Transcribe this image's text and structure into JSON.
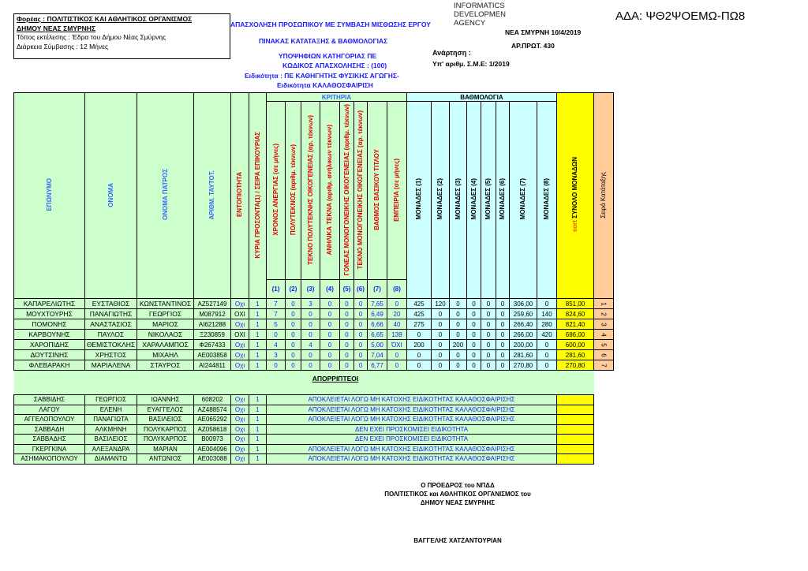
{
  "header": {
    "agency_line": "Φορέας :  ΠΟΛΙΤΙΣΤΙΚΟΣ ΚΑΙ ΑΘΛΗΤΙΚΟΣ ΟΡΓΑΝΙΣΜΟΣ",
    "agency_line2": "ΔΗΜΟΥ ΝΕΑΣ ΣΜΥΡΝΗΣ",
    "place": "Τόπος εκτέλεσης : Έδρα του Δήμου Νέας Σμύρνης",
    "duration": "Διάρκεια Σύμβασης :  12 Μήνες",
    "title1": "ΑΠΑΣΧΟΛΗΣΗ ΠΡΟΣΩΠΙΚΟΥ ΜΕ ΣΥΜΒΑΣΗ ΜΙΣΘΩΣΗΣ ΕΡΓΟΥ",
    "title2": "ΠΙΝΑΚΑΣ ΚΑΤΑΤΑΞΗΣ & ΒΑΘΜΟΛΟΓΙΑΣ",
    "title3": "ΥΠΟΨΗΦΙΩΝ ΚΑΤΗΓΟΡΙΑΣ ΠΕ",
    "title4": "ΚΩΔΙΚΟΣ ΑΠΑΣΧΟΛΗΣΗΣ : (100)",
    "specialty1": "Ειδικότητα :  ΠΕ ΚΑΘΗΓΗΤΗΣ ΦΥΣΙΚΗΣ ΑΓΩΓΗΣ-",
    "specialty2": "Ειδικότητα ΚΑΛΑΘΟΣΦΑΙΡΙΣΗ",
    "signature_stamp": "INFORMATICS DEVELOPMEN AGENCY",
    "place_date": "ΝΕΑ ΣΜΥΡΝΗ    10/4/2019",
    "protocol": "ΑΡ.ΠΡΩΤ. 430",
    "posting": "Ανάρτηση :",
    "sme": "Υπ' αριθμ. Σ.Μ.Ε:  1/2019",
    "ada": "ΑΔΑ: ΨΘ2ΨΟΕΜΩ-ΠΩ8"
  },
  "columns": {
    "surname": "ΕΠΩΝΥΜΟ",
    "name": "ΟΝΟΜΑ",
    "father": "ΟΝΟΜΑ ΠΑΤΡΟΣ",
    "id": "ΑΡΙΘΜ. ΤΑΥΤΟΤ.",
    "locality": "ΕΝΤΟΠΙΟΤΗΤΑ",
    "qual": "ΚΥΡΙΑ ΠΡΟΣΟΝΤΑ(1) / ΣΕΙΡΑ ΕΠΙΚΟΥΡΙΑΣ",
    "criteria_group": "ΚΡΙΤΗΡΙΑ",
    "criteria": [
      "ΧΡΟΝΟΣ ΑΝΕΡΓΙΑΣ (σε μήνες)",
      "ΠΟΛΥΤΕΚΝΟΣ (αριθμ. τέκνων)",
      "ΤΕΚΝΟ ΠΟΛΥΤΕΚΝΗΣ ΟΙΚΟΓΕΝΕΙΑΣ (αρ. τέκνων)",
      "ΑΝΗΛΙΚΑ ΤΕΚΝΑ (αριθμ. ανήλικων τέκνων)",
      "ΓΟΝΕΑΣ ΜΟΝΟΓΟΝΕΙΚΗΣ ΟΙΚΟΓΕΝΕΙΑΣ (αριθμ. τέκνων)",
      "ΤΕΚΝΟ ΜΟΝΟΓΟΝΕΙΚΗΣ ΟΙΚΟΓΕΝΕΙΑΣ (αρ. τέκνων)",
      "ΒΑΘΜΟΣ ΒΑΣΙΚΟΥ ΤΙΤΛΟΥ",
      "ΕΜΠΕΙΡΙΑ (σε μήνες)"
    ],
    "criteria_nums": [
      "(1)",
      "(2)",
      "(3)",
      "(4)",
      "(5)",
      "(6)",
      "(7)",
      "(8)"
    ],
    "score_group": "ΒΑΘΜΟΛΟΓΙΑ",
    "scores": [
      "ΜΟΝΑΔΕΣ (1)",
      "ΜΟΝΑΔΕΣ (2)",
      "ΜΟΝΑΔΕΣ (3)",
      "ΜΟΝΑΔΕΣ (4)",
      "ΜΟΝΑΔΕΣ (5)",
      "ΜΟΝΑΔΕΣ (6)",
      "ΜΟΝΑΔΕΣ (7)",
      "ΜΟΝΑΔΕΣ (8)"
    ],
    "total_sort": "sort",
    "total": "ΣΥΝΟΛΟ ΜΟΝΑΔΩΝ",
    "rank": "Σειρά Κατάταξης"
  },
  "rows": [
    [
      "ΚΑΠΑΡΕΛΙΩΤΗΣ",
      "ΕΥΣΤΑΘΙΟΣ",
      "ΚΩΝΣΤΑΝΤΙΝΟΣ",
      "ΑΖ527149",
      "Οχι",
      "1",
      "7",
      "0",
      "3",
      "0",
      "0",
      "0",
      "7,65",
      "0",
      "425",
      "120",
      "0",
      "0",
      "0",
      "0",
      "306,00",
      "0",
      "851,00",
      "1"
    ],
    [
      "ΜΟΥΧΤΟΥΡΗΣ",
      "ΠΑΝΑΓΙΩΤΗΣ",
      "ΓΕΩΡΓΙΟΣ",
      "Μ087912",
      "ΟΧΙ",
      "1",
      "7",
      "0",
      "0",
      "0",
      "0",
      "0",
      "6,49",
      "20",
      "425",
      "0",
      "0",
      "0",
      "0",
      "0",
      "259,60",
      "140",
      "824,60",
      "2"
    ],
    [
      "ΠΟΜΟΝΗΣ",
      "ΑΝΑΣΤΑΣΙΟΣ",
      "ΜΑΡΙΟΣ",
      "ΑΙ621288",
      "Οχι",
      "1",
      "5",
      "0",
      "0",
      "0",
      "0",
      "0",
      "6,66",
      "40",
      "275",
      "0",
      "0",
      "0",
      "0",
      "0",
      "266,40",
      "280",
      "821,40",
      "3"
    ],
    [
      "ΚΑΡΒΟΥΝΗΣ",
      "ΠΑΥΛΟΣ",
      "ΝΙΚΟΛΑΟΣ",
      "Ξ230859",
      "ΟΧΙ",
      "1",
      "0",
      "0",
      "0",
      "0",
      "0",
      "0",
      "6,65",
      "139",
      "0",
      "0",
      "0",
      "0",
      "0",
      "0",
      "266,00",
      "420",
      "686,00",
      "4"
    ],
    [
      "ΧΑΡΟΠΙΔΗΣ",
      "ΘΕΜΙΣΤΟΚΛΗΣ",
      "ΧΑΡΑΛΑΜΠΟΣ",
      "Φ267433",
      "Οχι",
      "1",
      "4",
      "0",
      "4",
      "0",
      "0",
      "0",
      "5,00",
      "ΌΧΙ",
      "200",
      "0",
      "200",
      "0",
      "0",
      "0",
      "200,00",
      "0",
      "600,00",
      "5"
    ],
    [
      "ΔΟΥΤΣΙΝΗΣ",
      "ΧΡΗΣΤΟΣ",
      "ΜΙΧΑΗΛ",
      "ΑΕ003858",
      "Οχι",
      "1",
      "3",
      "0",
      "0",
      "0",
      "0",
      "0",
      "7,04",
      "0",
      "0",
      "0",
      "0",
      "0",
      "0",
      "0",
      "281,60",
      "0",
      "281,60",
      "6"
    ],
    [
      "ΦΛΕΒΑΡΑΚΗ",
      "ΜΑΡΙΑΛΕΝΑ",
      "ΣΤΑΥΡΟΣ",
      "ΑΙ244811",
      "Οχι",
      "1",
      "0",
      "0",
      "0",
      "0",
      "0",
      "0",
      "6,77",
      "0",
      "0",
      "0",
      "0",
      "0",
      "0",
      "0",
      "270,80",
      "0",
      "270,80",
      "7"
    ]
  ],
  "rejected_label": "ΑΠΟΡΡΙΠΤΕΟΙ",
  "rejected": [
    [
      "ΣΑΒΒΙΔΗΣ",
      "ΓΕΩΡΓΙΟΣ",
      "ΙΩΑΝΝΗΣ",
      "608202",
      "Οχι",
      "1",
      "ΑΠΟΚΛΕΙΕΤΑΙ ΛΟΓΩ ΜΗ ΚΑΤΟΧΗΣ ΕΙΔΙΚΟΤΗΤΑΣ ΚΑΛΑΘΟΣΦΑΙΡΙΣΗΣ"
    ],
    [
      "ΛΑΓΟΥ",
      "ΕΛΕΝΗ",
      "ΕΥΑΓΓΕΛΟΣ",
      "ΑΖ488574",
      "Οχι",
      "1",
      "ΑΠΟΚΛΕΙΕΤΑΙ ΛΟΓΩ ΜΗ ΚΑΤΟΧΗΣ ΕΙΔΙΚΟΤΗΤΑΣ ΚΑΛΑΘΟΣΦΑΙΡΙΣΗΣ"
    ],
    [
      "ΑΓΓΕΛΟΠΟΥΛΟΥ",
      "ΠΑΝΑΓΙΩΤΑ",
      "ΒΑΣΙΛΕΙΟΣ",
      "ΑΕ065292",
      "Οχι",
      "1",
      "ΑΠΟΚΛΕΙΕΤΑΙ ΛΟΓΩ ΜΗ ΚΑΤΟΧΗΣ ΕΙΔΙΚΟΤΗΤΑΣ ΚΑΛΑΘΟΣΦΑΙΡΙΣΗΣ"
    ],
    [
      "ΣΑΒΒΑΔΗ",
      "ΑΛΚΜΗΝΗ",
      "ΠΟΛΥΚΑΡΠΟΣ",
      "ΑΖ058618",
      "Οχι",
      "1",
      "ΔΕΝ ΕΧΕΙ ΠΡΟΣΚΟΜΙΣΕΙ ΕΙΔΙΚΟΤΗΤΑ"
    ],
    [
      "ΣΑΒΒΑΔΗΣ",
      "ΒΑΣΙΛΕΙΟΣ",
      "ΠΟΛΥΚΑΡΠΟΣ",
      "Β00973",
      "Οχι",
      "1",
      "ΔΕΝ ΕΧΕΙ ΠΡΟΣΚΟΜΙΣΕΙ ΕΙΔΙΚΟΤΗΤΑ"
    ],
    [
      "ΓΚΕΡΓΚΙΝΑ",
      "ΑΛΕΞΑΝΔΡΑ",
      "ΜΑΡΙΑΝ",
      "ΑΕ004096",
      "Οχι",
      "1",
      "ΑΠΟΚΛΕΙΕΤΑΙ ΛΟΓΩ ΜΗ ΚΑΤΟΧΗΣ ΕΙΔΙΚΟΤΗΤΑΣ ΚΑΛΑΘΟΣΦΑΙΡΙΣΗΣ"
    ],
    [
      "ΑΣΗΜΑΚΟΠΟΥΛΟΥ",
      "ΔΙΑΜΑΝΤΩ",
      "ΑΝΤΩΝΙΟΣ",
      "ΑΕ003088",
      "Οχι",
      "1",
      "ΑΠΟΚΛΕΙΕΤΑΙ ΛΟΓΩ ΜΗ ΚΑΤΟΧΗΣ ΕΙΔΙΚΟΤΗΤΑΣ ΚΑΛΑΘΟΣΦΑΙΡΙΣΗΣ"
    ]
  ],
  "footer": {
    "line1": "Ο ΠΡΟΕΔΡΟΣ του ΝΠΔΔ",
    "line2": "ΠΟΛΙΤΙΣΤΙΚΟΣ και ΑΘΛΗΤΙΚΟΣ ΟΡΓΑΝΙΣΜΟΣ του",
    "line3": "ΔΗΜΟΥ ΝΕΑΣ ΣΜΥΡΝΗΣ",
    "name": "ΒΑΓΓΕΛΗΣ ΧΑΤΖΑΝΤΟΥΡΙΑΝ"
  },
  "colors": {
    "criteria_bg": "#ccffcc",
    "score_bg": "#ccffff",
    "total_bg": "#ffff00",
    "rank_bg": "#ffcc99",
    "header_blue": "#3366ff",
    "header_red": "#e00000"
  }
}
